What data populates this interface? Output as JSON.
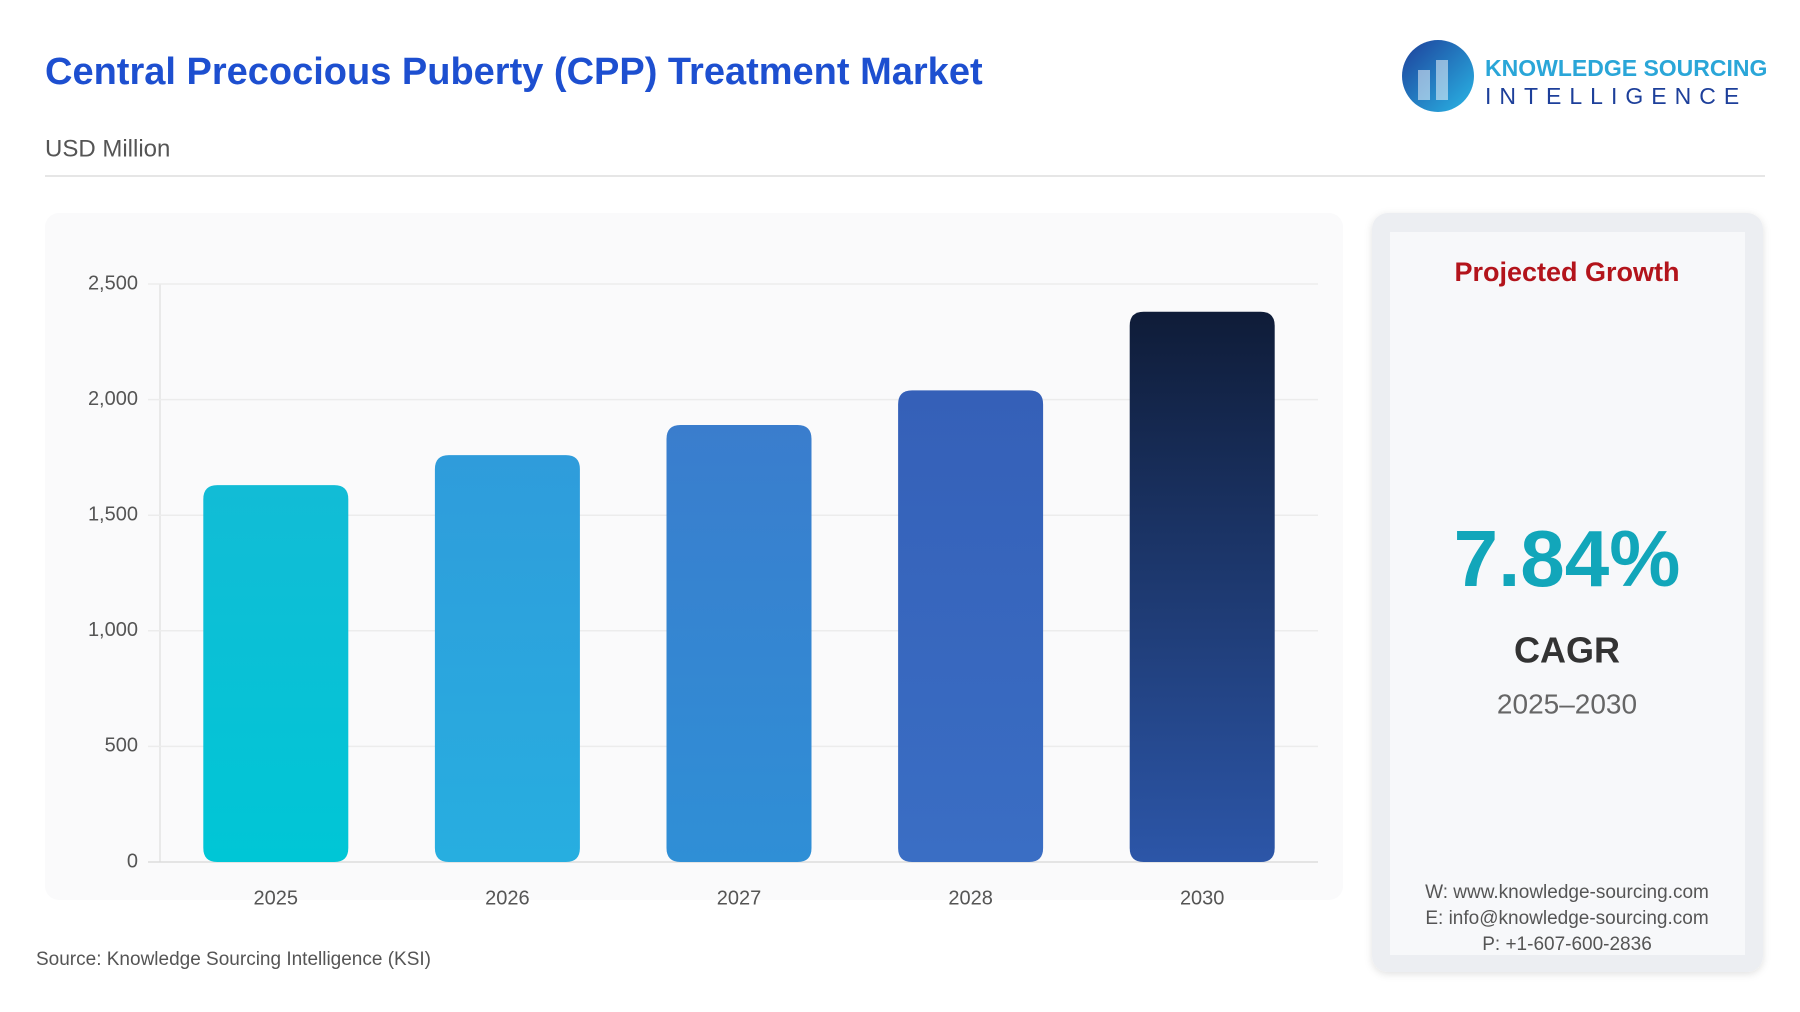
{
  "header": {
    "title": "Central Precocious Puberty (CPP) Treatment Market",
    "subtitle": "USD Million"
  },
  "logo": {
    "line1": "KNOWLEDGE SOURCING",
    "line2": "INTELLIGENCE"
  },
  "chart_data": {
    "type": "bar",
    "categories": [
      "2025",
      "2026",
      "2027",
      "2028",
      "2030"
    ],
    "values": [
      1630,
      1760,
      1890,
      2040,
      2380
    ],
    "colors": [
      [
        "#12bcd6",
        "#00c6d6"
      ],
      [
        "#2f9cdb",
        "#27aee0"
      ],
      [
        "#3a7dcd",
        "#2f8fd6"
      ],
      [
        "#3560b8",
        "#3a6ec4"
      ],
      [
        "#0f1c38",
        "#2c56a8"
      ]
    ],
    "ylim": [
      0,
      2500
    ],
    "yticks": [
      0,
      500,
      {
        "value": 1000,
        "label": "1,000"
      },
      {
        "value": 1500,
        "label": "1,500"
      },
      {
        "value": 2000,
        "label": "2,000"
      },
      {
        "value": 2500,
        "label": "2,500"
      }
    ],
    "grid": true
  },
  "side_panel": {
    "heading": "Projected Growth",
    "cagr": "7.84%",
    "cagr_label": "CAGR",
    "period": "2025–2030",
    "contacts": [
      "W: www.knowledge-sourcing.com",
      "E: info@knowledge-sourcing.com",
      "P: +1-607-600-2836"
    ]
  },
  "source": "Source: Knowledge Sourcing Intelligence (KSI)"
}
